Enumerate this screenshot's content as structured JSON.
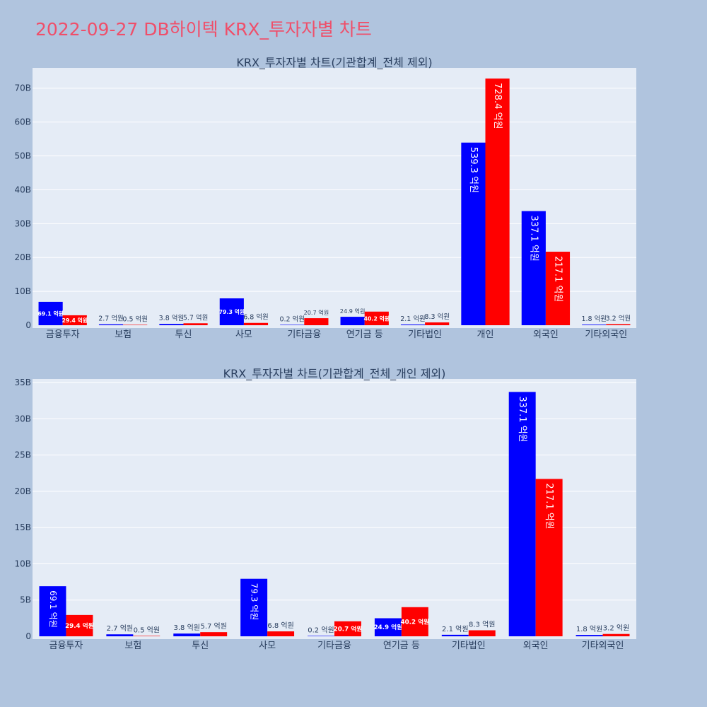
{
  "title": "2022-09-27 DB하이텍 KRX_투자자별 차트",
  "colors": {
    "buy": "#0000ff",
    "sell": "#ff0000",
    "plot_bg": "#e5ecf6",
    "page_bg": "#b0c4de",
    "title": "#ef4f6a"
  },
  "chart_data": [
    {
      "type": "bar",
      "title": "KRX_투자자별 차트(기관합계_전체 제외)",
      "categories": [
        "금융투자",
        "보험",
        "투신",
        "사모",
        "기타금융",
        "연기금 등",
        "기타법인",
        "개인",
        "외국인",
        "기타외국인"
      ],
      "series": [
        {
          "values": [
            6.91,
            0.27,
            0.38,
            7.93,
            0.02,
            2.49,
            0.21,
            53.93,
            33.71,
            0.18
          ],
          "labels": [
            "69.1 억원",
            "2.7 억원",
            "3.8 억원",
            "79.3 억원",
            "0.2 억원",
            "24.9 억원",
            "2.1 억원",
            "539.3 억원",
            "337.1 억원",
            "1.8 억원"
          ]
        },
        {
          "values": [
            2.94,
            0.05,
            0.57,
            0.68,
            2.07,
            4.02,
            0.83,
            72.84,
            21.71,
            0.32
          ],
          "labels": [
            "29.4 억원",
            "0.5 억원",
            "5.7 억원",
            "6.8 억원",
            "20.7 억원",
            "40.2 억원",
            "8.3 억원",
            "728.4 억원",
            "217.1 억원",
            "3.2 억원"
          ]
        }
      ],
      "yticks": [
        "0",
        "10B",
        "20B",
        "30B",
        "40B",
        "50B",
        "60B",
        "70B"
      ],
      "ylim": [
        0,
        76
      ],
      "grid": true
    },
    {
      "type": "bar",
      "title": "KRX_투자자별 차트(기관합계_전체_개인 제외)",
      "categories": [
        "금융투자",
        "보험",
        "투신",
        "사모",
        "기타금융",
        "연기금 등",
        "기타법인",
        "외국인",
        "기타외국인"
      ],
      "series": [
        {
          "values": [
            6.91,
            0.27,
            0.38,
            7.93,
            0.02,
            2.49,
            0.21,
            33.71,
            0.18
          ],
          "labels": [
            "69.1 억원",
            "2.7 억원",
            "3.8 억원",
            "79.3 억원",
            "0.2 억원",
            "24.9 억원",
            "2.1 억원",
            "337.1 억원",
            "1.8 억원"
          ]
        },
        {
          "values": [
            2.94,
            0.05,
            0.57,
            0.68,
            2.07,
            4.02,
            0.83,
            21.71,
            0.32
          ],
          "labels": [
            "29.4 억원",
            "0.5 억원",
            "5.7 억원",
            "6.8 억원",
            "20.7 억원",
            "40.2 억원",
            "8.3 억원",
            "217.1 억원",
            "3.2 억원"
          ]
        }
      ],
      "yticks": [
        "0",
        "5B",
        "10B",
        "15B",
        "20B",
        "25B",
        "30B",
        "35B"
      ],
      "ylim": [
        0,
        35.5
      ],
      "grid": true
    }
  ]
}
